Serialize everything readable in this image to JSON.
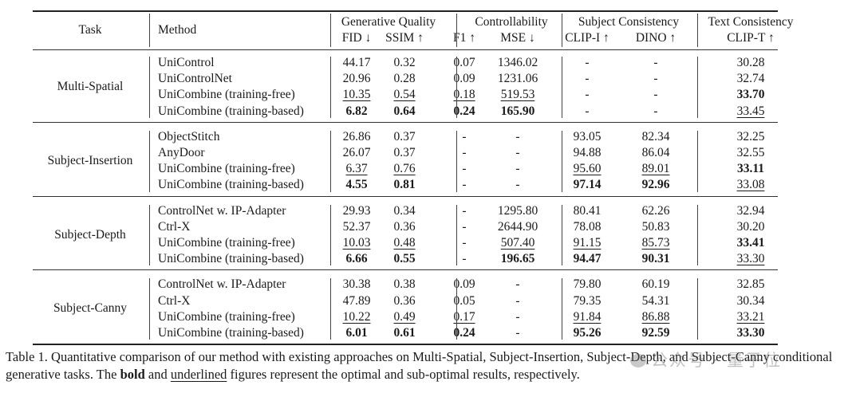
{
  "table": {
    "header": {
      "task": "Task",
      "method": "Method",
      "groups": [
        {
          "label": "Generative Quality",
          "metrics": [
            "FID ↓",
            "SSIM ↑"
          ]
        },
        {
          "label": "Controllability",
          "metrics": [
            "F1 ↑",
            "MSE ↓"
          ]
        },
        {
          "label": "Subject Consistency",
          "metrics": [
            "CLIP-I ↑",
            "DINO ↑"
          ]
        },
        {
          "label": "Text Consistency",
          "metrics": [
            "CLIP-T ↑"
          ]
        }
      ]
    },
    "sections": [
      {
        "task": "Multi-Spatial",
        "rows": [
          {
            "method": "UniControl",
            "values": [
              "44.17",
              "0.32",
              "0.07",
              "1346.02",
              "-",
              "-",
              "30.28"
            ],
            "style": [
              "",
              "",
              "",
              "",
              "",
              "",
              ""
            ]
          },
          {
            "method": "UniControlNet",
            "values": [
              "20.96",
              "0.28",
              "0.09",
              "1231.06",
              "-",
              "-",
              "32.74"
            ],
            "style": [
              "",
              "",
              "",
              "",
              "",
              "",
              ""
            ]
          },
          {
            "method": "UniCombine (training-free)",
            "values": [
              "10.35",
              "0.54",
              "0.18",
              "519.53",
              "-",
              "-",
              "33.70"
            ],
            "style": [
              "u",
              "u",
              "u",
              "u",
              "",
              "",
              "b"
            ]
          },
          {
            "method": "UniCombine (training-based)",
            "values": [
              "6.82",
              "0.64",
              "0.24",
              "165.90",
              "-",
              "-",
              "33.45"
            ],
            "style": [
              "b",
              "b",
              "b",
              "b",
              "",
              "",
              "u"
            ]
          }
        ]
      },
      {
        "task": "Subject-Insertion",
        "rows": [
          {
            "method": "ObjectStitch",
            "values": [
              "26.86",
              "0.37",
              "-",
              "-",
              "93.05",
              "82.34",
              "32.25"
            ],
            "style": [
              "",
              "",
              "",
              "",
              "",
              "",
              ""
            ]
          },
          {
            "method": "AnyDoor",
            "values": [
              "26.07",
              "0.37",
              "-",
              "-",
              "94.88",
              "86.04",
              "32.55"
            ],
            "style": [
              "",
              "",
              "",
              "",
              "",
              "",
              ""
            ]
          },
          {
            "method": "UniCombine (training-free)",
            "values": [
              "6.37",
              "0.76",
              "-",
              "-",
              "95.60",
              "89.01",
              "33.11"
            ],
            "style": [
              "u",
              "u",
              "",
              "",
              "u",
              "u",
              "b"
            ]
          },
          {
            "method": "UniCombine (training-based)",
            "values": [
              "4.55",
              "0.81",
              "-",
              "-",
              "97.14",
              "92.96",
              "33.08"
            ],
            "style": [
              "b",
              "b",
              "",
              "",
              "b",
              "b",
              "u"
            ]
          }
        ]
      },
      {
        "task": "Subject-Depth",
        "rows": [
          {
            "method": "ControlNet w. IP-Adapter",
            "values": [
              "29.93",
              "0.34",
              "-",
              "1295.80",
              "80.41",
              "62.26",
              "32.94"
            ],
            "style": [
              "",
              "",
              "",
              "",
              "",
              "",
              ""
            ]
          },
          {
            "method": "Ctrl-X",
            "values": [
              "52.37",
              "0.36",
              "-",
              "2644.90",
              "78.08",
              "50.83",
              "30.20"
            ],
            "style": [
              "",
              "",
              "",
              "",
              "",
              "",
              ""
            ]
          },
          {
            "method": "UniCombine (training-free)",
            "values": [
              "10.03",
              "0.48",
              "-",
              "507.40",
              "91.15",
              "85.73",
              "33.41"
            ],
            "style": [
              "u",
              "u",
              "",
              "u",
              "u",
              "u",
              "b"
            ]
          },
          {
            "method": "UniCombine (training-based)",
            "values": [
              "6.66",
              "0.55",
              "-",
              "196.65",
              "94.47",
              "90.31",
              "33.30"
            ],
            "style": [
              "b",
              "b",
              "",
              "b",
              "b",
              "b",
              "u"
            ]
          }
        ]
      },
      {
        "task": "Subject-Canny",
        "rows": [
          {
            "method": "ControlNet w. IP-Adapter",
            "values": [
              "30.38",
              "0.38",
              "0.09",
              "-",
              "79.80",
              "60.19",
              "32.85"
            ],
            "style": [
              "",
              "",
              "",
              "",
              "",
              "",
              ""
            ]
          },
          {
            "method": "Ctrl-X",
            "values": [
              "47.89",
              "0.36",
              "0.05",
              "-",
              "79.35",
              "54.31",
              "30.34"
            ],
            "style": [
              "",
              "",
              "",
              "",
              "",
              "",
              ""
            ]
          },
          {
            "method": "UniCombine (training-free)",
            "values": [
              "10.22",
              "0.49",
              "0.17",
              "-",
              "91.84",
              "86.88",
              "33.21"
            ],
            "style": [
              "u",
              "u",
              "u",
              "",
              "u",
              "u",
              "u"
            ]
          },
          {
            "method": "UniCombine (training-based)",
            "values": [
              "6.01",
              "0.61",
              "0.24",
              "-",
              "95.26",
              "92.59",
              "33.30"
            ],
            "style": [
              "b",
              "b",
              "b",
              "",
              "b",
              "b",
              "b"
            ]
          }
        ]
      }
    ]
  },
  "caption": {
    "part1": "Table 1. Quantitative comparison of our method with existing approaches on Multi-Spatial, Subject-Insertion, Subject-Depth, and Subject-Canny conditional generative tasks. The ",
    "bold_word": "bold",
    "part2": " and ",
    "underlined_word": "underlined",
    "part3": " figures represent the optimal and sub-optimal results, respectively."
  },
  "watermark": "公众号 · 量子位"
}
